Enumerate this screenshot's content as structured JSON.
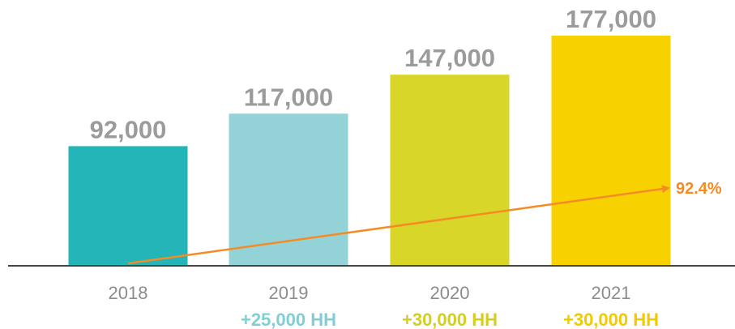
{
  "chart_data": {
    "type": "bar",
    "title": "",
    "xlabel": "",
    "ylabel": "",
    "ylim": [
      0,
      180000
    ],
    "grid": false,
    "legend": "none",
    "categories": [
      "2018",
      "2019",
      "2020",
      "2021"
    ],
    "values": [
      92000,
      117000,
      147000,
      177000
    ],
    "value_labels": [
      "92,000",
      "117,000",
      "147,000",
      "177,000"
    ],
    "growth_labels": [
      "",
      "+25,000 HH",
      "+30,000 HH",
      "+30,000 HH"
    ],
    "bar_colors": [
      "#23b5b8",
      "#93d2d6",
      "#d9d62a",
      "#f8d100"
    ],
    "growth_colors": [
      "",
      "#7fcfd4",
      "#d4cf1f",
      "#f3c900"
    ],
    "trend": {
      "label": "92.4%",
      "color": "#f58b25",
      "from_category": "2018",
      "to_category": "2021"
    },
    "axis_color": "#444444"
  }
}
